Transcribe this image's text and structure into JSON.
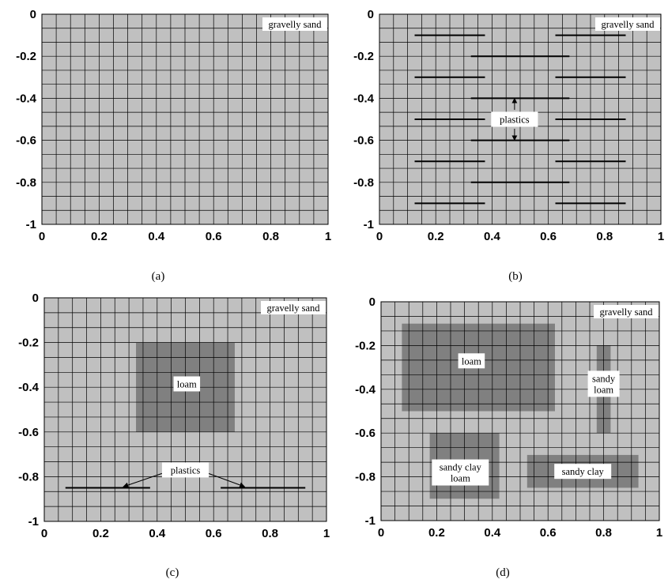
{
  "panels": [
    {
      "id": "a",
      "caption": "(a)",
      "x_ticks": [
        "0",
        "0.2",
        "0.4",
        "0.6",
        "0.8",
        "1"
      ],
      "y_ticks": [
        "0",
        "-0.2",
        "-0.4",
        "-0.6",
        "-0.8",
        "-1"
      ],
      "background_label": "gravelly sand",
      "regions": [],
      "lines": [],
      "labels": []
    },
    {
      "id": "b",
      "caption": "(b)",
      "x_ticks": [
        "0",
        "0.2",
        "0.4",
        "0.6",
        "0.8",
        "1"
      ],
      "y_ticks": [
        "0",
        "-0.2",
        "-0.4",
        "-0.6",
        "-0.8",
        "-1"
      ],
      "background_label": "gravelly sand",
      "regions": [],
      "lines": [
        {
          "x1": 0.125,
          "x2": 0.375,
          "y": -0.1
        },
        {
          "x1": 0.625,
          "x2": 0.875,
          "y": -0.1
        },
        {
          "x1": 0.325,
          "x2": 0.675,
          "y": -0.2
        },
        {
          "x1": 0.125,
          "x2": 0.375,
          "y": -0.3
        },
        {
          "x1": 0.625,
          "x2": 0.875,
          "y": -0.3
        },
        {
          "x1": 0.325,
          "x2": 0.675,
          "y": -0.4
        },
        {
          "x1": 0.125,
          "x2": 0.375,
          "y": -0.5
        },
        {
          "x1": 0.625,
          "x2": 0.875,
          "y": -0.5
        },
        {
          "x1": 0.325,
          "x2": 0.675,
          "y": -0.6
        },
        {
          "x1": 0.125,
          "x2": 0.375,
          "y": -0.7
        },
        {
          "x1": 0.625,
          "x2": 0.875,
          "y": -0.7
        },
        {
          "x1": 0.325,
          "x2": 0.675,
          "y": -0.8
        },
        {
          "x1": 0.125,
          "x2": 0.375,
          "y": -0.9
        },
        {
          "x1": 0.625,
          "x2": 0.875,
          "y": -0.9
        }
      ],
      "labels": [
        {
          "lines": [
            "plastics"
          ],
          "x": 0.48,
          "y": -0.5,
          "boxed": true,
          "arrows": [
            {
              "x1": 0.48,
              "y1": -0.455,
              "x2": 0.48,
              "y2": -0.4
            },
            {
              "x1": 0.48,
              "y1": -0.545,
              "x2": 0.48,
              "y2": -0.6
            }
          ]
        }
      ]
    },
    {
      "id": "c",
      "caption": "(c)",
      "x_ticks": [
        "0",
        "0.2",
        "0.4",
        "0.6",
        "0.8",
        "1"
      ],
      "y_ticks": [
        "0",
        "-0.2",
        "-0.4",
        "-0.6",
        "-0.8",
        "-1"
      ],
      "background_label": "gravelly sand",
      "regions": [
        {
          "name": "loam",
          "x1": 0.325,
          "x2": 0.675,
          "y1": -0.2,
          "y2": -0.6
        }
      ],
      "lines": [
        {
          "x1": 0.075,
          "x2": 0.375,
          "y": -0.85
        },
        {
          "x1": 0.625,
          "x2": 0.925,
          "y": -0.85
        }
      ],
      "labels": [
        {
          "lines": [
            "loam"
          ],
          "x": 0.505,
          "y": -0.385,
          "boxed": true,
          "arrows": []
        },
        {
          "lines": [
            "plastics"
          ],
          "x": 0.5,
          "y": -0.77,
          "boxed": true,
          "arrows": [
            {
              "x1": 0.43,
              "y1": -0.78,
              "x2": 0.28,
              "y2": -0.845
            },
            {
              "x1": 0.57,
              "y1": -0.78,
              "x2": 0.71,
              "y2": -0.845
            }
          ]
        }
      ]
    },
    {
      "id": "d",
      "caption": "(d)",
      "x_ticks": [
        "0",
        "0.2",
        "0.4",
        "0.6",
        "0.8",
        "1"
      ],
      "y_ticks": [
        "0",
        "-0.2",
        "-0.4",
        "-0.6",
        "-0.8",
        "-1"
      ],
      "background_label": "gravelly sand",
      "regions": [
        {
          "name": "loam",
          "x1": 0.075,
          "x2": 0.625,
          "y1": -0.1,
          "y2": -0.5
        },
        {
          "name": "sandy loam",
          "x1": 0.775,
          "x2": 0.825,
          "y1": -0.2,
          "y2": -0.6
        },
        {
          "name": "sandy clay loam",
          "x1": 0.175,
          "x2": 0.425,
          "y1": -0.6,
          "y2": -0.9
        },
        {
          "name": "sandy clay",
          "x1": 0.525,
          "x2": 0.925,
          "y1": -0.7,
          "y2": -0.85
        }
      ],
      "lines": [],
      "labels": [
        {
          "lines": [
            "loam"
          ],
          "x": 0.325,
          "y": -0.27,
          "boxed": true,
          "arrows": []
        },
        {
          "lines": [
            "sandy",
            "loam"
          ],
          "x": 0.8,
          "y": -0.375,
          "boxed": true,
          "arrows": []
        },
        {
          "lines": [
            "sandy clay",
            "loam"
          ],
          "x": 0.285,
          "y": -0.78,
          "boxed": true,
          "arrows": []
        },
        {
          "lines": [
            "sandy clay"
          ],
          "x": 0.725,
          "y": -0.775,
          "boxed": true,
          "arrows": []
        }
      ]
    }
  ],
  "colors": {
    "background": "#c0c0c0",
    "region": "#808080",
    "grid": "#000000",
    "plastics": "#000000"
  }
}
